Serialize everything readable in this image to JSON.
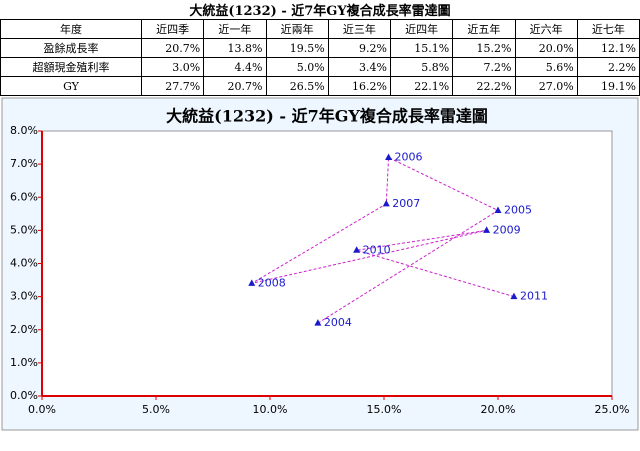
{
  "table": {
    "title": "大統益(1232) - 近7年GY複合成長率雷達圖",
    "header": [
      "年度",
      "近四季",
      "近一年",
      "近兩年",
      "近三年",
      "近四年",
      "近五年",
      "近六年",
      "近七年"
    ],
    "rows": [
      [
        "盈餘成長率",
        "20.7%",
        "13.8%",
        "19.5%",
        "9.2%",
        "15.1%",
        "15.2%",
        "20.0%",
        "12.1%"
      ],
      [
        "超額現金殖利率",
        "3.0%",
        "4.4%",
        "5.0%",
        "3.4%",
        "5.8%",
        "7.2%",
        "5.6%",
        "2.2%"
      ],
      [
        "GY",
        "27.7%",
        "20.7%",
        "26.5%",
        "16.2%",
        "22.1%",
        "22.2%",
        "27.0%",
        "19.1%"
      ]
    ]
  },
  "chart_data": {
    "type": "scatter",
    "title": "大統益(1232) - 近7年GY複合成長率雷達圖",
    "x": [
      12.1,
      20.0,
      15.2,
      15.1,
      9.2,
      19.5,
      13.8,
      20.7
    ],
    "values": [
      2.2,
      5.6,
      7.2,
      5.8,
      3.4,
      5.0,
      4.4,
      3.0
    ],
    "point_labels": [
      "2004",
      "2005",
      "2006",
      "2007",
      "2008",
      "2009",
      "2010",
      "2011"
    ],
    "color": "#1a1acc",
    "line_color": "#cc22cc",
    "connect": true,
    "xlim": [
      0,
      25
    ],
    "ylim": [
      0,
      8
    ],
    "xticks": [
      {
        "value": 0,
        "label": "0.0%"
      },
      {
        "value": 5,
        "label": "5.0%"
      },
      {
        "value": 10,
        "label": "10.0%"
      },
      {
        "value": 15,
        "label": "15.0%"
      },
      {
        "value": 20,
        "label": "20.0%"
      },
      {
        "value": 25,
        "label": "25.0%"
      }
    ],
    "yticks": [
      {
        "value": 0,
        "label": "0.0%"
      },
      {
        "value": 1,
        "label": "1.0%"
      },
      {
        "value": 2,
        "label": "2.0%"
      },
      {
        "value": 3,
        "label": "3.0%"
      },
      {
        "value": 4,
        "label": "4.0%"
      },
      {
        "value": 5,
        "label": "5.0%"
      },
      {
        "value": 6,
        "label": "6.0%"
      },
      {
        "value": 7,
        "label": "7.0%"
      },
      {
        "value": 8,
        "label": "8.0%"
      }
    ],
    "grid": false
  }
}
